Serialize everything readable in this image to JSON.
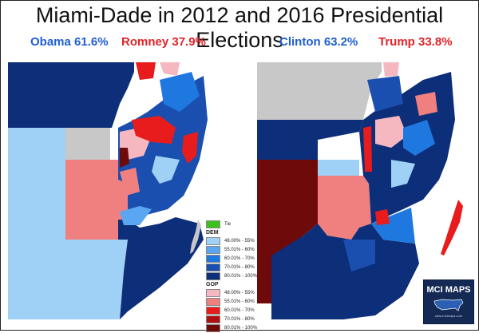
{
  "title": "Miami-Dade in 2012 and 2016 Presidential Elections",
  "left_panel": {
    "dem_result": "Obama 61.6%",
    "gop_result": "Romney 37.9%"
  },
  "right_panel": {
    "dem_result": "Clinton 63.2%",
    "gop_result": "Trump 33.8%"
  },
  "legend": {
    "tie_label": "Tie",
    "tie_color": "#3ec11f",
    "dem_heading": "DEM",
    "dem_items": [
      {
        "label": "48.00% - 55%",
        "color": "#9fd0f5"
      },
      {
        "label": "55.01% - 60%",
        "color": "#5aa6f0"
      },
      {
        "label": "60.01% - 70%",
        "color": "#1f78e0"
      },
      {
        "label": "70.01% - 80%",
        "color": "#1a4fb0"
      },
      {
        "label": "80.01% - 100%",
        "color": "#0d2e78"
      }
    ],
    "gop_heading": "GOP",
    "gop_items": [
      {
        "label": "48.00% - 55%",
        "color": "#f6b8c0"
      },
      {
        "label": "55.01% - 60%",
        "color": "#f08080"
      },
      {
        "label": "60.01% - 70%",
        "color": "#e81c1c"
      },
      {
        "label": "70.01% - 80%",
        "color": "#b00f0f"
      },
      {
        "label": "80.01% - 100%",
        "color": "#6e0a0a"
      }
    ]
  },
  "logo": {
    "title": "MCI MAPS",
    "url": "www.mcimaps.com"
  },
  "colors": {
    "dem_text": "#1f5fd1",
    "gop_text": "#e0242a",
    "no_data": "#c8c8c8"
  }
}
